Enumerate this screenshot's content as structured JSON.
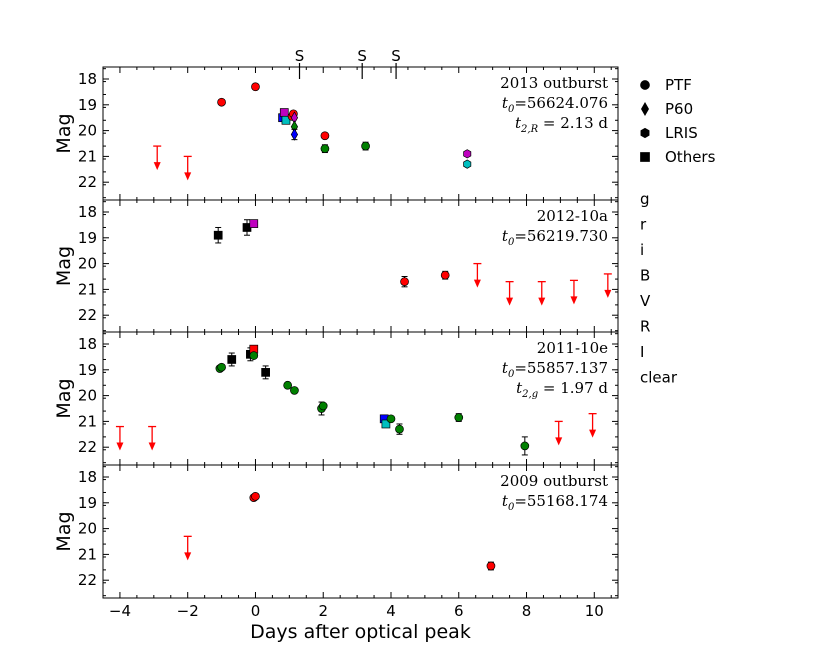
{
  "chart_data": {
    "type": "scatter",
    "xlabel": "Days after optical peak",
    "ylabel": "Mag",
    "xlim": [
      -4.5,
      10.7
    ],
    "ylim": [
      22.6,
      17.6
    ],
    "xticks": [
      -4,
      -2,
      0,
      2,
      4,
      6,
      8,
      10
    ],
    "xtick_labels": [
      "−4",
      "−2",
      "0",
      "2",
      "4",
      "6",
      "8",
      "10"
    ],
    "yticks": [
      18,
      19,
      20,
      21,
      22
    ],
    "top_markers": {
      "label": "S",
      "x": [
        1.3,
        3.15,
        4.15
      ]
    },
    "colors": {
      "g": "#008000",
      "r": "#ff0000",
      "i": "#bf00bf",
      "B": "#0000ff",
      "V": "#00bfbf",
      "R": "#dd0000",
      "I": "#9400d3",
      "clear": "#000000"
    },
    "legend_shapes": [
      {
        "shape": "circle",
        "label": "PTF"
      },
      {
        "shape": "diamond",
        "label": "P60"
      },
      {
        "shape": "hexagon",
        "label": "LRIS"
      },
      {
        "shape": "square",
        "label": "Others"
      }
    ],
    "legend_filters": [
      {
        "label": "g",
        "color": "#008000"
      },
      {
        "label": "r",
        "color": "#ff0000"
      },
      {
        "label": "i",
        "color": "#bf00bf"
      },
      {
        "label": "B",
        "color": "#0000ff"
      },
      {
        "label": "V",
        "color": "#00bfbf"
      },
      {
        "label": "R",
        "color": "#dd0000"
      },
      {
        "label": "I",
        "color": "#9400d3"
      },
      {
        "label": "clear",
        "color": "#000000"
      }
    ],
    "panels": [
      {
        "name": "2013 outburst",
        "annotations": [
          {
            "pre": "",
            "sub": "",
            "post": "2013 outburst"
          },
          {
            "pre": "t",
            "sub": "0",
            "post": "=56624.076"
          },
          {
            "pre": "t",
            "sub": "2,R",
            "post": " = 2.13 d"
          }
        ],
        "points": [
          {
            "x": -1.0,
            "y": 18.9,
            "shape": "circle",
            "filter": "r"
          },
          {
            "x": 0.0,
            "y": 18.3,
            "shape": "circle",
            "filter": "r"
          },
          {
            "x": 0.8,
            "y": 19.5,
            "shape": "square",
            "filter": "B"
          },
          {
            "x": 0.85,
            "y": 19.3,
            "shape": "square",
            "filter": "i"
          },
          {
            "x": 0.9,
            "y": 19.6,
            "shape": "square",
            "filter": "V"
          },
          {
            "x": 1.08,
            "y": 19.45,
            "shape": "circle",
            "filter": "r"
          },
          {
            "x": 1.12,
            "y": 19.35,
            "shape": "circle",
            "filter": "r"
          },
          {
            "x": 1.15,
            "y": 19.5,
            "shape": "diamond",
            "filter": "i"
          },
          {
            "x": 1.15,
            "y": 19.85,
            "shape": "diamond",
            "filter": "g"
          },
          {
            "x": 1.15,
            "y": 20.15,
            "shape": "diamond",
            "filter": "B",
            "err": 0.2
          },
          {
            "x": 2.05,
            "y": 20.2,
            "shape": "circle",
            "filter": "r"
          },
          {
            "x": 2.05,
            "y": 20.7,
            "shape": "circle",
            "filter": "g",
            "err": 0.15
          },
          {
            "x": 3.25,
            "y": 20.6,
            "shape": "circle",
            "filter": "g",
            "err": 0.15
          },
          {
            "x": 6.25,
            "y": 20.9,
            "shape": "hexagon",
            "filter": "i"
          },
          {
            "x": 6.25,
            "y": 21.3,
            "shape": "hexagon",
            "filter": "V"
          }
        ],
        "limits": [
          {
            "x": -2.9,
            "y": 20.6,
            "filter": "r"
          },
          {
            "x": -2.0,
            "y": 21.0,
            "filter": "r"
          }
        ]
      },
      {
        "name": "2012-10a",
        "annotations": [
          {
            "pre": "",
            "sub": "",
            "post": "2012-10a"
          },
          {
            "pre": "t",
            "sub": "0",
            "post": "=56219.730"
          }
        ],
        "points": [
          {
            "x": -1.1,
            "y": 18.9,
            "shape": "square",
            "filter": "clear",
            "err": 0.3
          },
          {
            "x": -0.25,
            "y": 18.6,
            "shape": "square",
            "filter": "clear",
            "err": 0.3
          },
          {
            "x": -0.05,
            "y": 18.45,
            "shape": "square",
            "filter": "i"
          },
          {
            "x": 4.4,
            "y": 20.7,
            "shape": "circle",
            "filter": "r",
            "err": 0.2
          },
          {
            "x": 5.6,
            "y": 20.45,
            "shape": "circle",
            "filter": "r",
            "err": 0.15
          }
        ],
        "limits": [
          {
            "x": 6.55,
            "y": 20.0,
            "filter": "r"
          },
          {
            "x": 7.5,
            "y": 20.7,
            "filter": "r"
          },
          {
            "x": 8.45,
            "y": 20.7,
            "filter": "r"
          },
          {
            "x": 9.4,
            "y": 20.65,
            "filter": "r"
          },
          {
            "x": 10.4,
            "y": 20.4,
            "filter": "r"
          }
        ]
      },
      {
        "name": "2011-10e",
        "annotations": [
          {
            "pre": "",
            "sub": "",
            "post": "2011-10e"
          },
          {
            "pre": "t",
            "sub": "0",
            "post": "=55857.137"
          },
          {
            "pre": "t",
            "sub": "2,g",
            "post": " = 1.97 d"
          }
        ],
        "points": [
          {
            "x": -1.05,
            "y": 18.95,
            "shape": "circle",
            "filter": "g"
          },
          {
            "x": -1.0,
            "y": 18.9,
            "shape": "circle",
            "filter": "g"
          },
          {
            "x": -0.7,
            "y": 18.6,
            "shape": "square",
            "filter": "clear",
            "err": 0.25
          },
          {
            "x": -0.15,
            "y": 18.4,
            "shape": "square",
            "filter": "clear",
            "err": 0.25
          },
          {
            "x": -0.05,
            "y": 18.2,
            "shape": "square",
            "filter": "r"
          },
          {
            "x": -0.05,
            "y": 18.45,
            "shape": "circle",
            "filter": "g"
          },
          {
            "x": 0.3,
            "y": 19.1,
            "shape": "square",
            "filter": "clear",
            "err": 0.25
          },
          {
            "x": 0.95,
            "y": 19.6,
            "shape": "circle",
            "filter": "g"
          },
          {
            "x": 1.15,
            "y": 19.8,
            "shape": "circle",
            "filter": "g"
          },
          {
            "x": 1.95,
            "y": 20.5,
            "shape": "circle",
            "filter": "g",
            "err": 0.25
          },
          {
            "x": 2.0,
            "y": 20.4,
            "shape": "circle",
            "filter": "g"
          },
          {
            "x": 3.8,
            "y": 20.9,
            "shape": "square",
            "filter": "B"
          },
          {
            "x": 3.85,
            "y": 21.1,
            "shape": "square",
            "filter": "V"
          },
          {
            "x": 4.0,
            "y": 20.9,
            "shape": "circle",
            "filter": "g"
          },
          {
            "x": 4.25,
            "y": 21.3,
            "shape": "circle",
            "filter": "g",
            "err": 0.2
          },
          {
            "x": 6.0,
            "y": 20.85,
            "shape": "circle",
            "filter": "g",
            "err": 0.15
          },
          {
            "x": 7.95,
            "y": 21.95,
            "shape": "circle",
            "filter": "g",
            "err": 0.35
          }
        ],
        "limits": [
          {
            "x": -4.0,
            "y": 21.2,
            "filter": "r"
          },
          {
            "x": -3.05,
            "y": 21.2,
            "filter": "r"
          },
          {
            "x": 8.95,
            "y": 21.0,
            "filter": "r"
          },
          {
            "x": 9.95,
            "y": 20.7,
            "filter": "r"
          }
        ]
      },
      {
        "name": "2009 outburst",
        "annotations": [
          {
            "pre": "",
            "sub": "",
            "post": "2009 outburst"
          },
          {
            "pre": "t",
            "sub": "0",
            "post": "=55168.174"
          }
        ],
        "points": [
          {
            "x": -0.05,
            "y": 18.8,
            "shape": "circle",
            "filter": "r"
          },
          {
            "x": 0.0,
            "y": 18.75,
            "shape": "circle",
            "filter": "r"
          },
          {
            "x": 6.95,
            "y": 21.45,
            "shape": "circle",
            "filter": "r",
            "err": 0.15
          }
        ],
        "limits": [
          {
            "x": -2.0,
            "y": 20.3,
            "filter": "r"
          }
        ]
      }
    ]
  }
}
